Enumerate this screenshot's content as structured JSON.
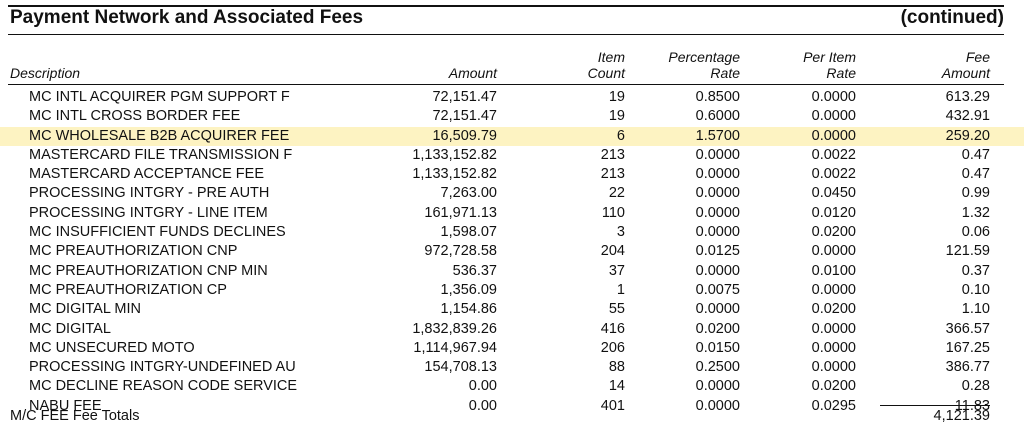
{
  "header": {
    "title": "Payment Network and Associated Fees",
    "continued": "(continued)"
  },
  "columns": {
    "description": "Description",
    "amount": "Amount",
    "item_count_1": "Item",
    "item_count_2": "Count",
    "pct_rate_1": "Percentage",
    "pct_rate_2": "Rate",
    "per_item_1": "Per Item",
    "per_item_2": "Rate",
    "fee_1": "Fee",
    "fee_2": "Amount"
  },
  "rows": [
    {
      "desc": "MC INTL ACQUIRER PGM SUPPORT F",
      "amount": "72,151.47",
      "count": "19",
      "pct": "0.8500",
      "per": "0.0000",
      "fee": "613.29",
      "highlight": false
    },
    {
      "desc": "MC INTL CROSS BORDER FEE",
      "amount": "72,151.47",
      "count": "19",
      "pct": "0.6000",
      "per": "0.0000",
      "fee": "432.91",
      "highlight": false
    },
    {
      "desc": "MC WHOLESALE B2B ACQUIRER FEE",
      "amount": "16,509.79",
      "count": "6",
      "pct": "1.5700",
      "per": "0.0000",
      "fee": "259.20",
      "highlight": true
    },
    {
      "desc": "MASTERCARD FILE TRANSMISSION F",
      "amount": "1,133,152.82",
      "count": "213",
      "pct": "0.0000",
      "per": "0.0022",
      "fee": "0.47",
      "highlight": false
    },
    {
      "desc": "MASTERCARD ACCEPTANCE FEE",
      "amount": "1,133,152.82",
      "count": "213",
      "pct": "0.0000",
      "per": "0.0022",
      "fee": "0.47",
      "highlight": false
    },
    {
      "desc": "PROCESSING INTGRY - PRE AUTH",
      "amount": "7,263.00",
      "count": "22",
      "pct": "0.0000",
      "per": "0.0450",
      "fee": "0.99",
      "highlight": false
    },
    {
      "desc": "PROCESSING INTGRY - LINE ITEM",
      "amount": "161,971.13",
      "count": "110",
      "pct": "0.0000",
      "per": "0.0120",
      "fee": "1.32",
      "highlight": false
    },
    {
      "desc": "MC INSUFFICIENT FUNDS DECLINES",
      "amount": "1,598.07",
      "count": "3",
      "pct": "0.0000",
      "per": "0.0200",
      "fee": "0.06",
      "highlight": false
    },
    {
      "desc": "MC PREAUTHORIZATION CNP",
      "amount": "972,728.58",
      "count": "204",
      "pct": "0.0125",
      "per": "0.0000",
      "fee": "121.59",
      "highlight": false
    },
    {
      "desc": "MC PREAUTHORIZATION CNP MIN",
      "amount": "536.37",
      "count": "37",
      "pct": "0.0000",
      "per": "0.0100",
      "fee": "0.37",
      "highlight": false
    },
    {
      "desc": "MC PREAUTHORIZATION CP",
      "amount": "1,356.09",
      "count": "1",
      "pct": "0.0075",
      "per": "0.0000",
      "fee": "0.10",
      "highlight": false
    },
    {
      "desc": "MC DIGITAL MIN",
      "amount": "1,154.86",
      "count": "55",
      "pct": "0.0000",
      "per": "0.0200",
      "fee": "1.10",
      "highlight": false
    },
    {
      "desc": "MC DIGITAL",
      "amount": "1,832,839.26",
      "count": "416",
      "pct": "0.0200",
      "per": "0.0000",
      "fee": "366.57",
      "highlight": false
    },
    {
      "desc": "MC UNSECURED MOTO",
      "amount": "1,114,967.94",
      "count": "206",
      "pct": "0.0150",
      "per": "0.0000",
      "fee": "167.25",
      "highlight": false
    },
    {
      "desc": "PROCESSING INTGRY-UNDEFINED AU",
      "amount": "154,708.13",
      "count": "88",
      "pct": "0.2500",
      "per": "0.0000",
      "fee": "386.77",
      "highlight": false
    },
    {
      "desc": "MC DECLINE REASON CODE SERVICE",
      "amount": "0.00",
      "count": "14",
      "pct": "0.0000",
      "per": "0.0200",
      "fee": "0.28",
      "highlight": false
    },
    {
      "desc": "NABU FEE",
      "amount": "0.00",
      "count": "401",
      "pct": "0.0000",
      "per": "0.0295",
      "fee": "11.83",
      "highlight": false
    }
  ],
  "totals": {
    "label": "M/C FEE Fee Totals",
    "value": "4,121.39"
  },
  "colors": {
    "highlight": "#fdf3c2"
  }
}
